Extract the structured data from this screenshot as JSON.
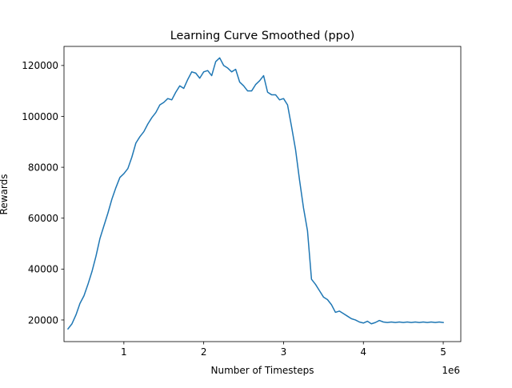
{
  "chart_data": {
    "type": "line",
    "title": "Learning Curve Smoothed (ppo)",
    "xlabel": "Number of Timesteps",
    "ylabel": "Rewards",
    "x_offset_label": "1e6",
    "x_unit_multiplier": 1000000,
    "xlim": [
      250000,
      5220000
    ],
    "ylim": [
      11500,
      127500
    ],
    "xticks": [
      1,
      2,
      3,
      4,
      5
    ],
    "yticks": [
      20000,
      40000,
      60000,
      80000,
      100000,
      120000
    ],
    "grid": false,
    "line_color": "#1f77b4",
    "series": [
      {
        "x": [
          300000,
          350000,
          400000,
          450000,
          500000,
          550000,
          600000,
          650000,
          700000,
          750000,
          800000,
          850000,
          900000,
          950000,
          1000000,
          1050000,
          1100000,
          1150000,
          1200000,
          1250000,
          1300000,
          1350000,
          1400000,
          1450000,
          1500000,
          1550000,
          1600000,
          1650000,
          1700000,
          1750000,
          1800000,
          1850000,
          1900000,
          1950000,
          2000000,
          2050000,
          2100000,
          2150000,
          2200000,
          2250000,
          2300000,
          2350000,
          2400000,
          2450000,
          2500000,
          2550000,
          2600000,
          2650000,
          2700000,
          2750000,
          2800000,
          2850000,
          2900000,
          2950000,
          3000000,
          3050000,
          3100000,
          3150000,
          3200000,
          3250000,
          3300000,
          3350000,
          3400000,
          3450000,
          3500000,
          3550000,
          3600000,
          3650000,
          3700000,
          3750000,
          3800000,
          3850000,
          3900000,
          3950000,
          4000000,
          4050000,
          4100000,
          4150000,
          4200000,
          4250000,
          4300000,
          4350000,
          4400000,
          4450000,
          4500000,
          4550000,
          4600000,
          4650000,
          4700000,
          4750000,
          4800000,
          4850000,
          4900000,
          4950000,
          5000000
        ],
        "values": [
          16500,
          18500,
          22000,
          26500,
          29500,
          34000,
          39000,
          45000,
          52000,
          57000,
          62000,
          67500,
          72000,
          76000,
          77500,
          79500,
          84000,
          89500,
          92000,
          94000,
          97000,
          99500,
          101500,
          104500,
          105500,
          107000,
          106500,
          109500,
          112000,
          111000,
          114500,
          117500,
          117000,
          115000,
          117500,
          118000,
          116000,
          121500,
          123000,
          120000,
          119000,
          117500,
          118500,
          113500,
          112000,
          110000,
          110000,
          112500,
          114000,
          116000,
          109500,
          108500,
          108500,
          106500,
          107000,
          104500,
          96000,
          87000,
          75000,
          64000,
          55000,
          36000,
          34000,
          31500,
          29000,
          28000,
          26000,
          23000,
          23500,
          22500,
          21500,
          20500,
          20000,
          19200,
          18800,
          19500,
          18500,
          19000,
          19800,
          19200,
          19000,
          19200,
          19000,
          19200,
          19000,
          19200,
          19000,
          19200,
          19000,
          19200,
          19000,
          19200,
          19000,
          19200,
          19000
        ]
      }
    ]
  }
}
